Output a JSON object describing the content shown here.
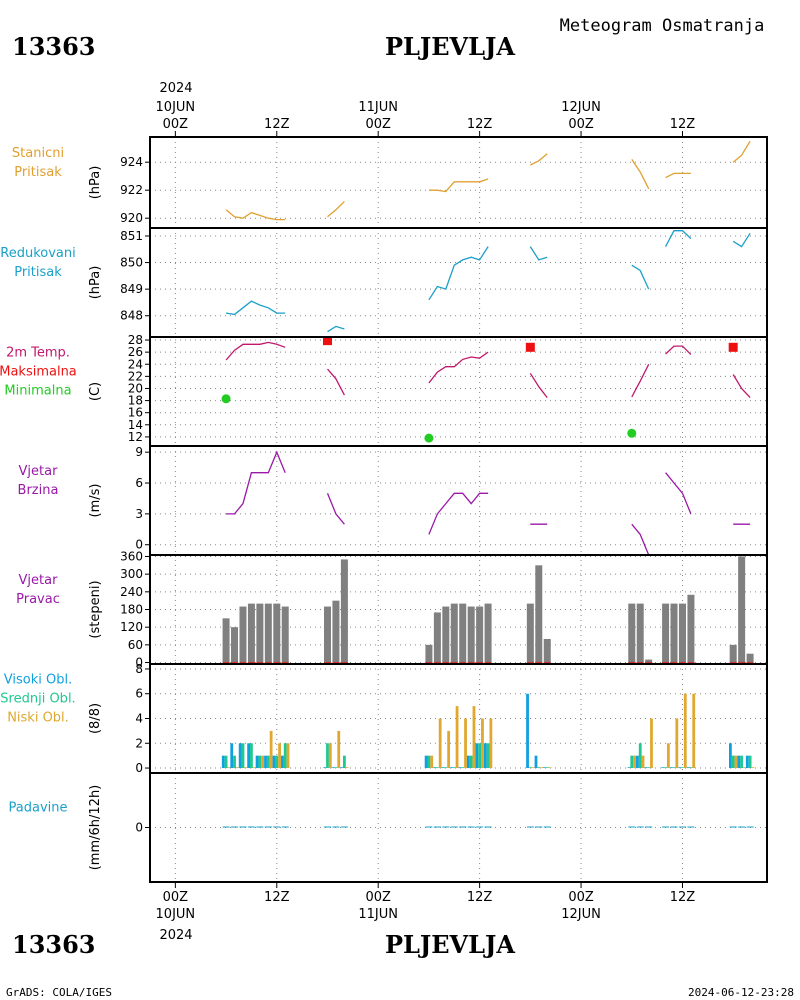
{
  "header": {
    "station_id": "13363",
    "station_name": "PLJEVLJA",
    "product": "Meteogram Osmatranja"
  },
  "footer": {
    "left": "GrADS: COLA/IGES",
    "right": "2024-06-12-23:28"
  },
  "colors": {
    "pressure": "#e0a030",
    "reduced": "#1aa0c8",
    "tmax_line": "#c0186c",
    "tmax_marker": "#ee1010",
    "tmin_marker": "#22cc22",
    "wind": "#9a18a8",
    "wind_dir_bar": "#808080",
    "cloud_high": "#10a0e0",
    "cloud_mid": "#20c890",
    "cloud_low": "#e0a830",
    "precip": "#1aa0c8"
  },
  "time_axis": {
    "year": "2024",
    "day_labels": [
      "10JUN",
      "11JUN",
      "12JUN"
    ],
    "hour_labels": [
      "00Z",
      "12Z",
      "00Z",
      "12Z",
      "00Z",
      "12Z"
    ],
    "hour_label_positions_h": [
      0,
      12,
      24,
      36,
      48,
      60
    ],
    "day_label_positions_h": [
      0,
      24,
      48
    ],
    "range_h": [
      -3,
      70
    ]
  },
  "chart_data": [
    {
      "type": "line",
      "name": "stanicni_pritisak",
      "label_lines": [
        "Stanicni",
        "Pritisak"
      ],
      "unit": "(hPa)",
      "ylim": [
        919.3,
        925.8
      ],
      "yticks": [
        920,
        922,
        924
      ],
      "series": [
        {
          "color_key": "pressure",
          "segments": [
            [
              [
                6,
                920.6
              ],
              [
                7,
                920.1
              ],
              [
                8,
                920.0
              ],
              [
                9,
                920.4
              ],
              [
                10,
                920.2
              ],
              [
                11,
                920.0
              ],
              [
                12,
                919.9
              ],
              [
                13,
                919.9
              ]
            ],
            [
              [
                18,
                920.1
              ],
              [
                19,
                920.6
              ],
              [
                20,
                921.2
              ]
            ],
            [
              [
                30,
                922.0
              ],
              [
                31,
                922.0
              ],
              [
                32,
                921.9
              ],
              [
                33,
                922.6
              ],
              [
                34,
                922.6
              ],
              [
                35,
                922.6
              ],
              [
                36,
                922.6
              ],
              [
                37,
                922.8
              ]
            ],
            [
              [
                42,
                923.8
              ],
              [
                43,
                924.1
              ],
              [
                44,
                924.6
              ]
            ],
            [
              [
                54,
                924.2
              ],
              [
                55,
                923.3
              ],
              [
                56,
                922.1
              ]
            ],
            [
              [
                58,
                922.9
              ],
              [
                59,
                923.2
              ],
              [
                60,
                923.2
              ],
              [
                61,
                923.2
              ]
            ],
            [
              [
                66,
                924.0
              ],
              [
                67,
                924.5
              ],
              [
                68,
                925.5
              ]
            ]
          ]
        }
      ]
    },
    {
      "type": "line",
      "name": "redukovani_pritisak",
      "label_lines": [
        "Redukovani",
        "Pritisak"
      ],
      "unit": "(hPa)",
      "ylim": [
        847.2,
        851.3
      ],
      "yticks": [
        848,
        849,
        850,
        851
      ],
      "series": [
        {
          "color_key": "reduced",
          "segments": [
            [
              [
                6,
                848.1
              ],
              [
                7,
                848.05
              ],
              [
                8,
                848.3
              ],
              [
                9,
                848.55
              ],
              [
                10,
                848.4
              ],
              [
                11,
                848.3
              ],
              [
                12,
                848.1
              ],
              [
                13,
                848.1
              ]
            ],
            [
              [
                18,
                847.4
              ],
              [
                19,
                847.6
              ],
              [
                20,
                847.5
              ]
            ],
            [
              [
                30,
                848.6
              ],
              [
                31,
                849.1
              ],
              [
                32,
                849.0
              ],
              [
                33,
                849.9
              ],
              [
                34,
                850.1
              ],
              [
                35,
                850.2
              ],
              [
                36,
                850.1
              ],
              [
                37,
                850.6
              ]
            ],
            [
              [
                42,
                850.6
              ],
              [
                43,
                850.1
              ],
              [
                44,
                850.2
              ]
            ],
            [
              [
                54,
                849.9
              ],
              [
                55,
                849.7
              ],
              [
                56,
                849.0
              ]
            ],
            [
              [
                58,
                850.6
              ],
              [
                59,
                851.2
              ],
              [
                60,
                851.2
              ],
              [
                61,
                850.9
              ]
            ],
            [
              [
                66,
                850.8
              ],
              [
                67,
                850.6
              ],
              [
                68,
                851.1
              ]
            ]
          ]
        }
      ]
    },
    {
      "type": "line",
      "name": "temperatura_2m",
      "label_lines": [
        "2m Temp.",
        "Maksimalna",
        "Minimalna"
      ],
      "unit": "(C)",
      "ylim": [
        10.5,
        28.5
      ],
      "yticks": [
        12,
        14,
        16,
        18,
        20,
        22,
        24,
        26,
        28
      ],
      "series": [
        {
          "color_key": "tmax_line",
          "segments": [
            [
              [
                6,
                24.7
              ],
              [
                7,
                26.3
              ],
              [
                8,
                27.3
              ],
              [
                9,
                27.3
              ],
              [
                10,
                27.3
              ],
              [
                11,
                27.6
              ],
              [
                12,
                27.3
              ],
              [
                13,
                26.8
              ]
            ],
            [
              [
                18,
                23.2
              ],
              [
                19,
                21.6
              ],
              [
                20,
                18.9
              ]
            ],
            [
              [
                30,
                20.9
              ],
              [
                31,
                22.7
              ],
              [
                32,
                23.6
              ],
              [
                33,
                23.6
              ],
              [
                34,
                24.8
              ],
              [
                35,
                25.2
              ],
              [
                36,
                25.0
              ],
              [
                37,
                26.0
              ]
            ],
            [
              [
                42,
                22.5
              ],
              [
                43,
                20.3
              ],
              [
                44,
                18.5
              ]
            ],
            [
              [
                54,
                18.6
              ],
              [
                55,
                21.2
              ],
              [
                56,
                24.0
              ]
            ],
            [
              [
                58,
                25.7
              ],
              [
                59,
                27.0
              ],
              [
                60,
                27.0
              ],
              [
                61,
                25.6
              ]
            ],
            [
              [
                66,
                22.3
              ],
              [
                67,
                20.0
              ],
              [
                68,
                18.5
              ]
            ]
          ]
        }
      ],
      "markers": {
        "max": [
          [
            18,
            27.9
          ],
          [
            42,
            26.8
          ],
          [
            66,
            26.8
          ]
        ],
        "min": [
          [
            6,
            18.3
          ],
          [
            30,
            11.8
          ],
          [
            54,
            12.6
          ]
        ]
      }
    },
    {
      "type": "line",
      "name": "vjetar_brzina",
      "label_lines": [
        "Vjetar",
        "Brzina"
      ],
      "unit": "(m/s)",
      "ylim": [
        -1,
        9.6
      ],
      "yticks": [
        0,
        3,
        6,
        9
      ],
      "series": [
        {
          "color_key": "wind",
          "segments": [
            [
              [
                6,
                3
              ],
              [
                7,
                3
              ],
              [
                8,
                4
              ],
              [
                9,
                7
              ],
              [
                10,
                7
              ],
              [
                11,
                7
              ],
              [
                12,
                9
              ],
              [
                13,
                7
              ]
            ],
            [
              [
                18,
                5
              ],
              [
                19,
                3
              ],
              [
                20,
                2
              ]
            ],
            [
              [
                30,
                1
              ],
              [
                31,
                3
              ],
              [
                32,
                4
              ],
              [
                33,
                5
              ],
              [
                34,
                5
              ],
              [
                35,
                4
              ],
              [
                36,
                5
              ],
              [
                37,
                5
              ]
            ],
            [
              [
                42,
                2
              ],
              [
                43,
                2
              ],
              [
                44,
                2
              ]
            ],
            [
              [
                54,
                2
              ],
              [
                55,
                1
              ],
              [
                56,
                -1
              ]
            ],
            [
              [
                58,
                7
              ],
              [
                59,
                6
              ],
              [
                60,
                5
              ],
              [
                61,
                3
              ]
            ],
            [
              [
                66,
                2
              ],
              [
                67,
                2
              ],
              [
                68,
                2
              ]
            ]
          ]
        }
      ]
    },
    {
      "type": "bar",
      "name": "vjetar_pravac",
      "label_lines": [
        "Vjetar",
        "Pravac"
      ],
      "unit": "(stepeni)",
      "ylim": [
        -5,
        365
      ],
      "yticks": [
        0,
        60,
        120,
        180,
        240,
        300,
        360
      ],
      "hours": [
        6,
        7,
        8,
        9,
        10,
        11,
        12,
        13,
        18,
        19,
        20,
        30,
        31,
        32,
        33,
        34,
        35,
        36,
        37,
        42,
        43,
        44,
        54,
        55,
        56,
        58,
        59,
        60,
        61,
        66,
        67,
        68
      ],
      "values": [
        150,
        120,
        190,
        200,
        200,
        200,
        200,
        190,
        190,
        210,
        350,
        60,
        170,
        190,
        200,
        200,
        190,
        190,
        200,
        200,
        330,
        80,
        200,
        200,
        10,
        200,
        200,
        200,
        230,
        60,
        360,
        30
      ]
    },
    {
      "type": "bar",
      "name": "oblacnost",
      "label_lines": [
        "Visoki Obl.",
        "Srednji Obl.",
        "Niski Obl."
      ],
      "unit": "(8/8)",
      "ylim": [
        -0.4,
        8.4
      ],
      "yticks": [
        0,
        2,
        4,
        6,
        8
      ],
      "hours": [
        6,
        7,
        8,
        9,
        10,
        11,
        12,
        13,
        18,
        19,
        20,
        30,
        31,
        32,
        33,
        34,
        35,
        36,
        37,
        42,
        43,
        44,
        54,
        55,
        56,
        58,
        59,
        60,
        61,
        66,
        67,
        68
      ],
      "series": [
        {
          "name": "Visoki Obl.",
          "color_key": "cloud_high",
          "values": [
            1,
            2,
            2,
            2,
            1,
            1,
            1,
            1,
            0,
            0,
            0,
            1,
            0,
            0,
            0,
            0,
            1,
            2,
            2,
            6,
            1,
            0,
            0,
            1,
            0,
            0,
            0,
            0,
            0,
            2,
            1,
            1
          ]
        },
        {
          "name": "Srednji Obl.",
          "color_key": "cloud_mid",
          "values": [
            1,
            1,
            2,
            2,
            1,
            1,
            1,
            2,
            2,
            0,
            1,
            1,
            0,
            0,
            0,
            0,
            1,
            2,
            2,
            0,
            0,
            0,
            1,
            2,
            0,
            0,
            0,
            0,
            0,
            1,
            1,
            1
          ]
        },
        {
          "name": "Niski Obl.",
          "color_key": "cloud_low",
          "values": [
            0,
            0,
            0,
            0,
            1,
            3,
            2,
            2,
            2,
            3,
            0,
            1,
            4,
            3,
            5,
            4,
            5,
            4,
            4,
            0,
            0,
            0,
            1,
            1,
            4,
            2,
            4,
            6,
            6,
            1,
            0,
            0
          ]
        }
      ]
    },
    {
      "type": "bar",
      "name": "padavine",
      "label_lines": [
        "Padavine"
      ],
      "unit": "(mm/6h/12h)",
      "ylim": [
        -4,
        4
      ],
      "yticks": [
        0
      ],
      "hours": [
        6,
        7,
        8,
        9,
        10,
        11,
        12,
        13,
        18,
        19,
        20,
        30,
        31,
        32,
        33,
        34,
        35,
        36,
        37,
        42,
        43,
        44,
        54,
        55,
        56,
        58,
        59,
        60,
        61,
        66,
        67,
        68
      ],
      "values": [
        0,
        0,
        0,
        0,
        0,
        0,
        0,
        0,
        0,
        0,
        0,
        0,
        0,
        0,
        0,
        0,
        0,
        0,
        0,
        0,
        0,
        0,
        0,
        0,
        0,
        0,
        0,
        0,
        0,
        0,
        0,
        0
      ]
    }
  ]
}
